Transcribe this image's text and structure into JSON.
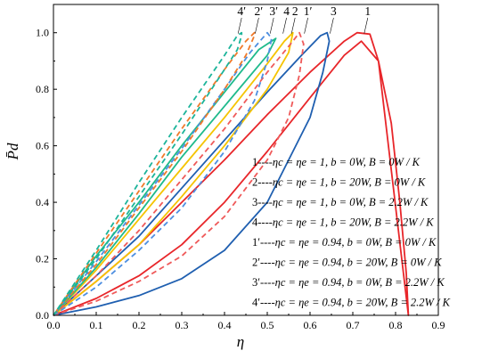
{
  "chart_data": {
    "type": "line",
    "xlabel": "η",
    "ylabel": "P̄d",
    "xlim": [
      0,
      0.9
    ],
    "ylim": [
      0,
      1.1
    ],
    "x_ticks": [
      0,
      0.1,
      0.2,
      0.3,
      0.4,
      0.5,
      0.6,
      0.7,
      0.8,
      0.9
    ],
    "x_tick_labels": [
      "0.0",
      "0.1",
      "0.2",
      "0.3",
      "0.4",
      "0.5",
      "0.6",
      "0.7",
      "0.8",
      "0.9"
    ],
    "y_ticks": [
      0,
      0.2,
      0.4,
      0.6,
      0.8,
      1.0
    ],
    "y_tick_labels": [
      "0.0",
      "0.2",
      "0.4",
      "0.6",
      "0.8",
      "1.0"
    ],
    "grid": false,
    "series": [
      {
        "name": "1",
        "color": "#e8262a",
        "style": "solid",
        "label_x": 0.735,
        "lower": [
          [
            0,
            0
          ],
          [
            0.1,
            0.06
          ],
          [
            0.2,
            0.14
          ],
          [
            0.3,
            0.25
          ],
          [
            0.4,
            0.4
          ],
          [
            0.5,
            0.58
          ],
          [
            0.6,
            0.77
          ],
          [
            0.68,
            0.92
          ],
          [
            0.72,
            0.97
          ],
          [
            0.76,
            0.9
          ],
          [
            0.79,
            0.68
          ],
          [
            0.81,
            0.4
          ],
          [
            0.825,
            0.15
          ],
          [
            0.83,
            0
          ]
        ],
        "upper": [
          [
            0,
            0
          ],
          [
            0.1,
            0.12
          ],
          [
            0.2,
            0.25
          ],
          [
            0.3,
            0.4
          ],
          [
            0.4,
            0.55
          ],
          [
            0.5,
            0.71
          ],
          [
            0.6,
            0.86
          ],
          [
            0.68,
            0.97
          ],
          [
            0.71,
            1.0
          ],
          [
            0.74,
            0.995
          ],
          [
            0.76,
            0.9
          ]
        ]
      },
      {
        "name": "3",
        "color": "#1f5fb0",
        "style": "solid",
        "label_x": 0.655,
        "lower": [
          [
            0,
            0
          ],
          [
            0.1,
            0.03
          ],
          [
            0.2,
            0.07
          ],
          [
            0.3,
            0.13
          ],
          [
            0.4,
            0.23
          ],
          [
            0.5,
            0.4
          ],
          [
            0.6,
            0.7
          ],
          [
            0.63,
            0.86
          ],
          [
            0.645,
            0.97
          ]
        ],
        "upper": [
          [
            0,
            0
          ],
          [
            0.1,
            0.14
          ],
          [
            0.2,
            0.28
          ],
          [
            0.3,
            0.45
          ],
          [
            0.4,
            0.62
          ],
          [
            0.5,
            0.79
          ],
          [
            0.58,
            0.92
          ],
          [
            0.625,
            0.99
          ],
          [
            0.64,
            1.0
          ],
          [
            0.645,
            0.97
          ]
        ]
      },
      {
        "name": "4",
        "color": "#f5c400",
        "style": "solid",
        "label_x": 0.545,
        "lower": [
          [
            0,
            0
          ],
          [
            0.1,
            0.12
          ],
          [
            0.2,
            0.25
          ],
          [
            0.3,
            0.42
          ],
          [
            0.4,
            0.6
          ],
          [
            0.5,
            0.8
          ],
          [
            0.55,
            0.93
          ],
          [
            0.56,
            1.0
          ]
        ],
        "upper": [
          [
            0,
            0
          ],
          [
            0.1,
            0.16
          ],
          [
            0.2,
            0.34
          ],
          [
            0.3,
            0.52
          ],
          [
            0.4,
            0.7
          ],
          [
            0.5,
            0.89
          ],
          [
            0.54,
            0.97
          ],
          [
            0.56,
            1.0
          ]
        ]
      },
      {
        "name": "2",
        "color": "#1fba8c",
        "style": "solid",
        "label_x": 0.565,
        "lower": [
          [
            0,
            0
          ],
          [
            0.1,
            0.17
          ],
          [
            0.2,
            0.36
          ],
          [
            0.3,
            0.56
          ],
          [
            0.4,
            0.74
          ],
          [
            0.5,
            0.92
          ],
          [
            0.52,
            0.98
          ]
        ],
        "upper": [
          [
            0,
            0
          ],
          [
            0.1,
            0.21
          ],
          [
            0.2,
            0.4
          ],
          [
            0.3,
            0.6
          ],
          [
            0.4,
            0.79
          ],
          [
            0.48,
            0.94
          ],
          [
            0.52,
            0.98
          ]
        ]
      },
      {
        "name": "1′",
        "color": "#ef5a5a",
        "style": "dashed",
        "label_x": 0.595,
        "lower": [
          [
            0,
            0
          ],
          [
            0.1,
            0.05
          ],
          [
            0.2,
            0.12
          ],
          [
            0.3,
            0.21
          ],
          [
            0.4,
            0.35
          ],
          [
            0.5,
            0.55
          ],
          [
            0.55,
            0.7
          ],
          [
            0.575,
            0.85
          ],
          [
            0.585,
            0.96
          ]
        ],
        "upper": [
          [
            0,
            0
          ],
          [
            0.1,
            0.14
          ],
          [
            0.2,
            0.3
          ],
          [
            0.3,
            0.48
          ],
          [
            0.4,
            0.66
          ],
          [
            0.5,
            0.86
          ],
          [
            0.56,
            0.97
          ],
          [
            0.575,
            1.0
          ],
          [
            0.585,
            0.96
          ]
        ]
      },
      {
        "name": "3′",
        "color": "#4d8ee0",
        "style": "dashed",
        "label_x": 0.515,
        "lower": [
          [
            0,
            0
          ],
          [
            0.1,
            0.1
          ],
          [
            0.2,
            0.23
          ],
          [
            0.3,
            0.38
          ],
          [
            0.4,
            0.58
          ],
          [
            0.47,
            0.76
          ],
          [
            0.5,
            0.9
          ],
          [
            0.51,
            0.98
          ]
        ],
        "upper": [
          [
            0,
            0
          ],
          [
            0.1,
            0.19
          ],
          [
            0.2,
            0.39
          ],
          [
            0.3,
            0.59
          ],
          [
            0.4,
            0.8
          ],
          [
            0.46,
            0.93
          ],
          [
            0.5,
            1.0
          ],
          [
            0.51,
            0.98
          ]
        ]
      },
      {
        "name": "2′",
        "color": "#f07a2a",
        "style": "dashed",
        "label_x": 0.48,
        "lower": [
          [
            0,
            0
          ],
          [
            0.1,
            0.18
          ],
          [
            0.2,
            0.38
          ],
          [
            0.3,
            0.58
          ],
          [
            0.4,
            0.8
          ],
          [
            0.45,
            0.92
          ],
          [
            0.47,
            0.99
          ]
        ],
        "upper": [
          [
            0,
            0
          ],
          [
            0.1,
            0.22
          ],
          [
            0.2,
            0.44
          ],
          [
            0.3,
            0.66
          ],
          [
            0.4,
            0.87
          ],
          [
            0.45,
            0.97
          ],
          [
            0.47,
            1.0
          ],
          [
            0.47,
            0.99
          ]
        ]
      },
      {
        "name": "4′",
        "color": "#1cb49a",
        "style": "dashed",
        "label_x": 0.44,
        "lower": [
          [
            0,
            0
          ],
          [
            0.1,
            0.2
          ],
          [
            0.2,
            0.42
          ],
          [
            0.3,
            0.64
          ],
          [
            0.4,
            0.87
          ],
          [
            0.43,
            0.94
          ],
          [
            0.44,
            0.99
          ]
        ],
        "upper": [
          [
            0,
            0
          ],
          [
            0.1,
            0.23
          ],
          [
            0.2,
            0.47
          ],
          [
            0.3,
            0.7
          ],
          [
            0.4,
            0.92
          ],
          [
            0.43,
            0.99
          ],
          [
            0.44,
            1.0
          ]
        ]
      }
    ],
    "legend": {
      "placement": "center-right",
      "entries": [
        {
          "key": "1",
          "text": "----ηc = ηe = 1,  b = 0W,  B = 0W / K"
        },
        {
          "key": "2",
          "text": "----ηc = ηe = 1,  b = 20W, B = 0W / K"
        },
        {
          "key": "3",
          "text": "----ηc = ηe = 1,  b = 0W,  B = 2.2W / K"
        },
        {
          "key": "4",
          "text": "----ηc = ηe = 1,  b = 20W,  B = 2.2W / K"
        },
        {
          "key": "1′",
          "text": "----ηc = ηe = 0.94,  b = 0W,  B = 0W / K"
        },
        {
          "key": "2′",
          "text": "----ηc = ηe = 0.94,  b = 20W,  B = 0W / K"
        },
        {
          "key": "3′",
          "text": "----ηc = ηe = 0.94,  b = 0W,  B = 2.2W / K"
        },
        {
          "key": "4′",
          "text": "----ηc = ηe = 0.94,  b = 20W,  B = 2.2W / K"
        }
      ]
    }
  }
}
